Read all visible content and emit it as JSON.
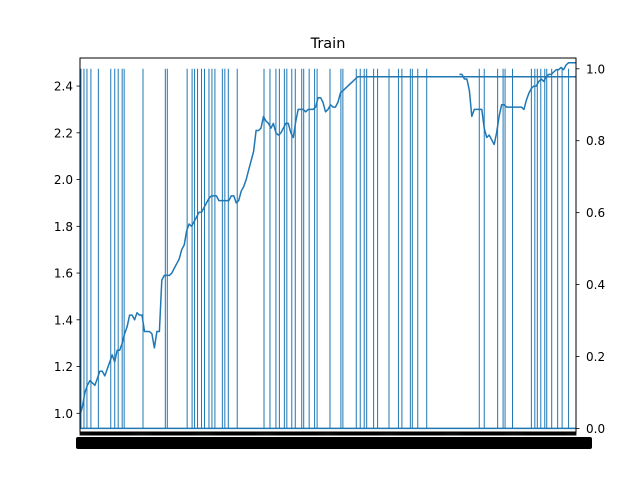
{
  "chart_data": {
    "type": "line",
    "title": "Train",
    "xlabel": "",
    "ylabel": "",
    "y2label": "",
    "xlim": [
      0,
      1000
    ],
    "ylim": [
      0.92,
      2.52
    ],
    "y2lim": [
      -0.01,
      1.03
    ],
    "grid": false,
    "legend": "none",
    "color": "#1f77b4",
    "y_ticks": [
      1.0,
      1.2,
      1.4,
      1.6,
      1.8,
      2.0,
      2.2,
      2.4
    ],
    "y_tick_labels": [
      "1.0",
      "1.2",
      "1.4",
      "1.6",
      "1.8",
      "2.0",
      "2.2",
      "2.4"
    ],
    "y2_ticks": [
      0.0,
      0.2,
      0.4,
      0.6,
      0.8,
      1.0
    ],
    "y2_tick_labels": [
      "0.0",
      "0.2",
      "0.4",
      "0.6",
      "0.8",
      "1.0"
    ],
    "series": [
      {
        "axis": "left",
        "x": [
          0,
          5,
          10,
          15,
          20,
          25,
          30,
          35,
          40,
          45,
          50,
          55,
          60,
          65,
          70,
          75,
          80,
          85,
          90,
          95,
          100,
          105,
          110,
          115,
          120,
          125,
          130,
          135,
          140,
          145,
          150,
          155,
          160,
          165,
          170,
          175,
          180,
          185,
          190,
          195,
          200,
          205,
          210,
          215,
          220,
          225,
          230,
          235,
          240,
          245,
          250,
          255,
          260,
          265,
          270,
          275,
          280,
          285,
          290,
          295,
          300,
          305,
          310,
          315,
          320,
          325,
          330,
          335,
          340,
          345,
          350,
          355,
          360,
          365,
          370,
          375,
          380,
          385,
          390,
          395,
          400,
          405,
          410,
          415,
          420,
          425,
          430,
          435,
          440,
          445,
          450,
          455,
          460,
          465,
          470,
          475,
          480,
          485,
          490,
          495,
          500,
          505,
          510,
          515,
          520,
          525,
          530,
          535,
          540,
          545,
          550,
          555,
          560,
          565,
          570,
          575,
          580,
          585,
          590,
          595,
          600,
          605,
          610,
          615,
          620,
          625,
          630,
          635,
          640,
          645,
          650,
          655,
          660,
          665,
          670,
          675,
          680,
          685,
          690,
          695,
          700,
          705,
          710,
          715,
          720,
          725,
          730,
          735,
          740,
          745,
          750,
          755,
          760,
          765,
          770,
          775,
          780,
          785,
          790,
          795,
          800,
          805,
          810,
          815,
          820,
          825,
          830,
          835,
          840,
          845,
          850,
          855,
          860,
          865,
          870,
          875,
          880,
          885,
          890,
          895,
          900,
          905,
          910,
          915,
          920,
          925,
          930,
          935,
          940,
          945,
          950,
          955,
          960,
          965,
          970,
          975,
          980,
          985,
          990,
          995,
          1000
        ],
        "y": [
          0.99,
          1.03,
          1.09,
          1.12,
          1.14,
          1.13,
          1.12,
          1.15,
          1.18,
          1.18,
          1.16,
          1.19,
          1.22,
          1.25,
          1.22,
          1.27,
          1.27,
          1.3,
          1.34,
          1.37,
          1.42,
          1.42,
          1.4,
          1.43,
          1.42,
          1.42,
          1.35,
          1.35,
          1.35,
          1.34,
          1.28,
          1.35,
          1.35,
          1.57,
          1.59,
          1.59,
          1.59,
          1.6,
          1.62,
          1.64,
          1.66,
          1.7,
          1.72,
          1.78,
          1.81,
          1.8,
          1.82,
          1.84,
          1.86,
          1.86,
          1.88,
          1.9,
          1.92,
          1.93,
          1.93,
          1.93,
          1.91,
          1.91,
          1.91,
          1.91,
          1.91,
          1.93,
          1.93,
          1.9,
          1.91,
          1.95,
          1.97,
          2.0,
          2.04,
          2.08,
          2.12,
          2.21,
          2.21,
          2.22,
          2.27,
          2.25,
          2.24,
          2.22,
          2.24,
          2.2,
          2.19,
          2.2,
          2.22,
          2.24,
          2.24,
          2.2,
          2.18,
          2.25,
          2.3,
          2.3,
          2.3,
          2.29,
          2.3,
          2.3,
          2.3,
          2.31,
          2.35,
          2.35,
          2.33,
          2.29,
          2.3,
          2.32,
          2.31,
          2.31,
          2.33,
          2.37,
          2.38,
          2.39,
          2.4,
          2.41,
          2.42,
          2.43,
          2.44,
          2.44,
          2.44,
          2.44,
          2.44,
          2.44,
          2.44,
          2.44,
          2.44,
          2.44,
          2.44,
          2.44,
          2.44,
          2.44,
          2.44,
          2.44,
          2.44,
          2.44,
          2.44,
          2.44,
          2.44,
          2.44,
          2.44,
          2.44,
          2.44,
          2.44,
          2.44,
          2.44,
          2.44,
          2.44,
          2.44,
          2.44,
          2.44,
          2.44,
          2.44,
          2.44,
          2.44,
          2.44,
          2.44,
          2.44,
          2.44,
          2.44,
          2.44,
          2.44,
          2.44,
          2.44,
          2.44,
          2.44,
          2.44,
          2.44,
          2.44,
          2.44,
          2.44,
          2.44,
          2.44,
          2.44,
          2.44,
          2.44,
          2.44,
          2.44,
          2.44,
          2.44,
          2.44,
          2.44,
          2.44,
          2.44,
          2.44,
          2.44,
          2.44,
          2.44,
          2.44,
          2.44,
          2.44,
          2.44,
          2.44,
          2.44,
          2.44,
          2.44,
          2.44,
          2.44,
          2.44,
          2.44,
          2.44,
          2.44,
          2.44,
          2.44,
          2.44,
          2.44,
          2.44
        ]
      },
      {
        "axis": "left",
        "x": [
          765,
          770,
          775,
          780,
          785,
          790,
          795,
          800,
          805,
          810,
          815,
          820,
          825,
          830,
          835,
          840,
          845,
          850,
          855,
          860,
          865,
          870,
          875,
          880,
          885,
          890,
          895,
          900,
          905,
          910,
          915,
          920,
          925,
          930,
          935,
          940,
          945,
          950,
          955,
          960,
          965,
          970,
          975,
          980,
          985,
          990,
          995,
          1000
        ],
        "y": [
          2.45,
          2.45,
          2.43,
          2.43,
          2.38,
          2.27,
          2.3,
          2.3,
          2.3,
          2.3,
          2.22,
          2.18,
          2.19,
          2.17,
          2.15,
          2.2,
          2.27,
          2.32,
          2.32,
          2.31,
          2.31,
          2.31,
          2.31,
          2.31,
          2.31,
          2.31,
          2.3,
          2.34,
          2.37,
          2.39,
          2.4,
          2.4,
          2.42,
          2.43,
          2.42,
          2.44,
          2.45,
          2.45,
          2.46,
          2.47,
          2.47,
          2.48,
          2.47,
          2.49,
          2.5,
          2.5,
          2.5,
          2.5
        ]
      }
    ],
    "events": {
      "axis": "right",
      "value": 1.0,
      "x": [
        2,
        8,
        14,
        22,
        37,
        62,
        70,
        77,
        85,
        89,
        127,
        172,
        176,
        216,
        226,
        231,
        237,
        245,
        251,
        260,
        266,
        272,
        287,
        292,
        299,
        317,
        371,
        383,
        395,
        402,
        412,
        417,
        427,
        434,
        447,
        451,
        462,
        473,
        478,
        504,
        526,
        530,
        557,
        565,
        573,
        578,
        592,
        600,
        623,
        642,
        649,
        666,
        670,
        681,
        699,
        805,
        815,
        842,
        853,
        857,
        872,
        910,
        917,
        922,
        929,
        937,
        941,
        951,
        963,
        972,
        985
      ]
    }
  }
}
